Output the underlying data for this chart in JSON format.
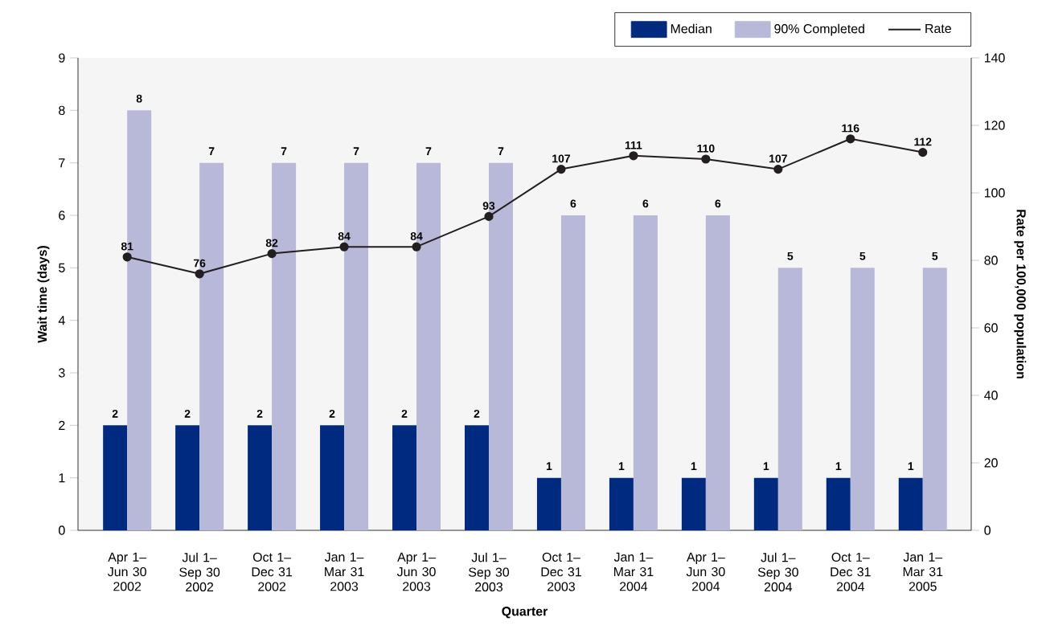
{
  "chart_data": {
    "type": "bar",
    "xlabel": "Quarter",
    "ylabel": "Wait time (days)",
    "y2label": "Rate per 100,000 population",
    "categories": [
      "Apr 1– Jun 30 2002",
      "Jul 1– Sep 30 2002",
      "Oct 1– Dec 31 2002",
      "Jan 1– Mar 31 2003",
      "Apr 1– Jun 30 2003",
      "Jul 1– Sep 30 2003",
      "Oct 1– Dec 31 2003",
      "Jan 1– Mar 31 2004",
      "Apr 1– Jun 30 2004",
      "Jul 1– Sep 30 2004",
      "Oct 1– Dec 31 2004",
      "Jan 1– Mar 31 2005"
    ],
    "series": [
      {
        "name": "Median",
        "color": "#002a80",
        "values": [
          2,
          2,
          2,
          2,
          2,
          2,
          1,
          1,
          1,
          1,
          1,
          1
        ]
      },
      {
        "name": "90% Completed",
        "color": "#b8b8d9",
        "values": [
          8,
          7,
          7,
          7,
          7,
          7,
          6,
          6,
          6,
          5,
          5,
          5
        ]
      },
      {
        "name": "Rate",
        "type": "line",
        "axis": "y2",
        "color": "#231f20",
        "values": [
          81,
          76,
          82,
          84,
          84,
          93,
          107,
          111,
          110,
          107,
          116,
          112
        ]
      }
    ],
    "ylim": [
      0,
      9
    ],
    "yticks": [
      0,
      1,
      2,
      3,
      4,
      5,
      6,
      7,
      8,
      9
    ],
    "y2lim": [
      0,
      140
    ],
    "y2ticks": [
      0,
      20,
      40,
      60,
      80,
      100,
      120,
      140
    ],
    "data_labels": true,
    "legend": "top right",
    "marker": "circle",
    "line_style": "solid"
  }
}
